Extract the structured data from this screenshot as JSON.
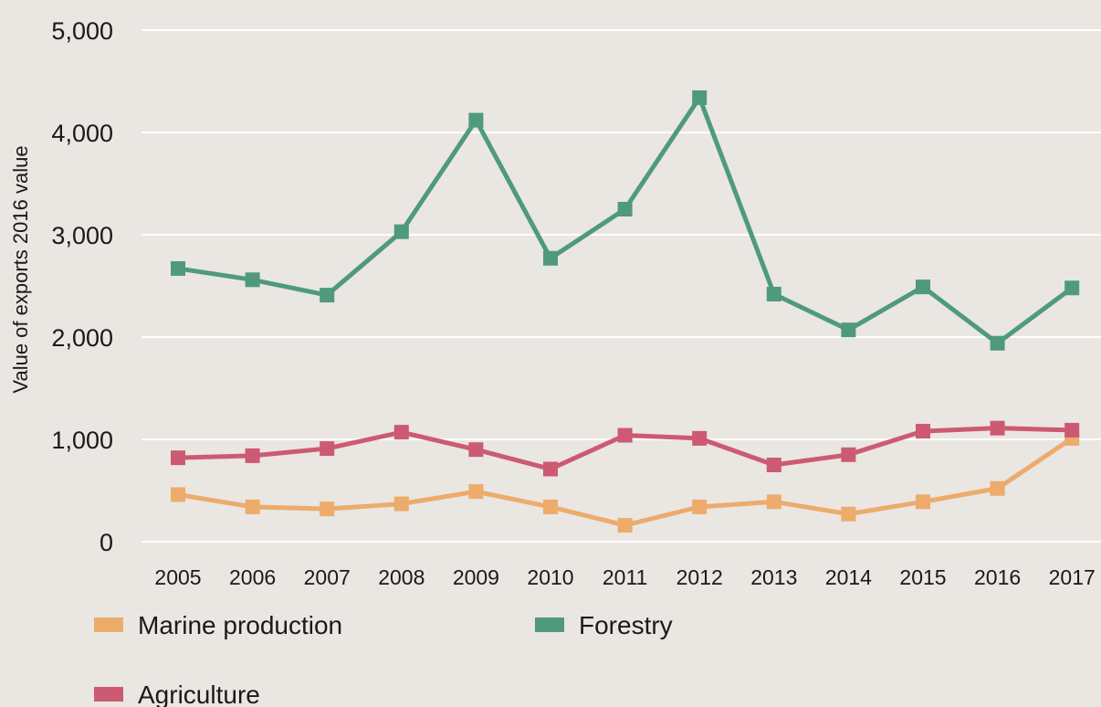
{
  "chart_data": {
    "type": "line",
    "title": "",
    "xlabel": "",
    "ylabel": "Value of exports 2016 value",
    "x": [
      "2005",
      "2006",
      "2007",
      "2008",
      "2009",
      "2010",
      "2011",
      "2012",
      "2013",
      "2014",
      "2015",
      "2016",
      "2017"
    ],
    "ylim": [
      0,
      5000
    ],
    "yticks": [
      0,
      1000,
      2000,
      3000,
      4000,
      5000
    ],
    "ytick_labels": [
      "0",
      "1,000",
      "2,000",
      "3,000",
      "4,000",
      "5,000"
    ],
    "grid": "horizontal",
    "legend_position": "bottom",
    "series": [
      {
        "name": "Marine production",
        "color": "#edab6c",
        "values": [
          460,
          340,
          320,
          370,
          490,
          340,
          160,
          340,
          390,
          270,
          390,
          520,
          1010
        ]
      },
      {
        "name": "Forestry",
        "color": "#4f9a7f",
        "values": [
          2670,
          2560,
          2410,
          3030,
          4120,
          2770,
          3250,
          4340,
          2420,
          2070,
          2490,
          1940,
          2480
        ]
      },
      {
        "name": "Agriculture",
        "color": "#cc5a73",
        "values": [
          820,
          840,
          910,
          1070,
          900,
          710,
          1040,
          1010,
          750,
          850,
          1080,
          1110,
          1090
        ]
      }
    ]
  }
}
